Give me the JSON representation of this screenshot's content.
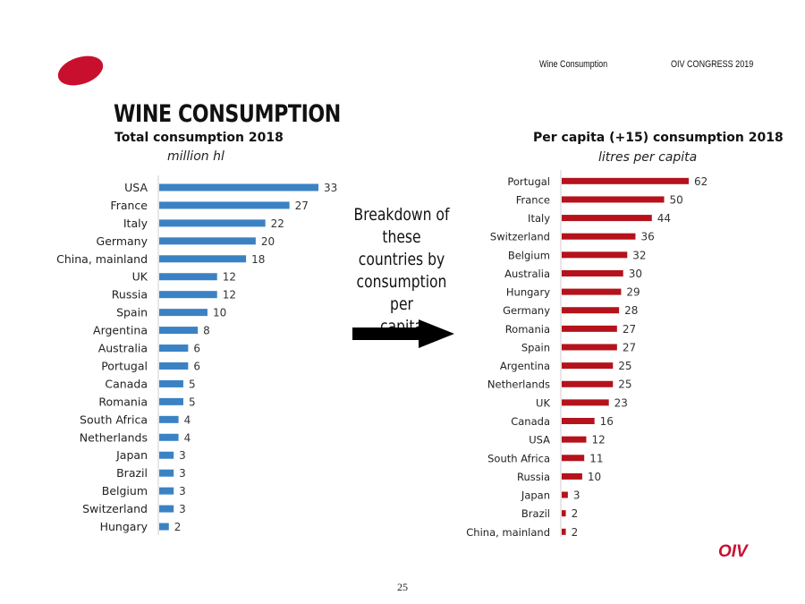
{
  "header": {
    "topic": "Wine Consumption",
    "event": "OIV CONGRESS 2019"
  },
  "title": "WINE CONSUMPTION",
  "annotation": {
    "lines": [
      "Breakdown of",
      "these countries by",
      "consumption per",
      "capita"
    ]
  },
  "footer": {
    "brand": "OIV",
    "page_number": "25"
  },
  "colors": {
    "left_bars": "#3b82c4",
    "right_bars": "#b5121b",
    "brand": "#c8102e"
  },
  "chart_data": [
    {
      "type": "bar",
      "orientation": "horizontal",
      "title": "Total consumption 2018",
      "subtitle": "million hl",
      "categories": [
        "USA",
        "France",
        "Italy",
        "Germany",
        "China, mainland",
        "UK",
        "Russia",
        "Spain",
        "Argentina",
        "Australia",
        "Portugal",
        "Canada",
        "Romania",
        "South Africa",
        "Netherlands",
        "Japan",
        "Brazil",
        "Belgium",
        "Switzerland",
        "Hungary"
      ],
      "values": [
        33,
        27,
        22,
        20,
        18,
        12,
        12,
        10,
        8,
        6,
        6,
        5,
        5,
        4,
        4,
        3,
        3,
        3,
        3,
        2
      ],
      "xlim": [
        0,
        33
      ]
    },
    {
      "type": "bar",
      "orientation": "horizontal",
      "title": "Per capita (+15) consumption 2018",
      "subtitle": "litres per capita",
      "categories": [
        "Portugal",
        "France",
        "Italy",
        "Switzerland",
        "Belgium",
        "Australia",
        "Hungary",
        "Germany",
        "Romania",
        "Spain",
        "Argentina",
        "Netherlands",
        "UK",
        "Canada",
        "USA",
        "South Africa",
        "Russia",
        "Japan",
        "Brazil",
        "China, mainland"
      ],
      "values": [
        62,
        50,
        44,
        36,
        32,
        30,
        29,
        28,
        27,
        27,
        25,
        25,
        23,
        16,
        12,
        11,
        10,
        3,
        2,
        2
      ],
      "xlim": [
        0,
        62
      ]
    }
  ]
}
